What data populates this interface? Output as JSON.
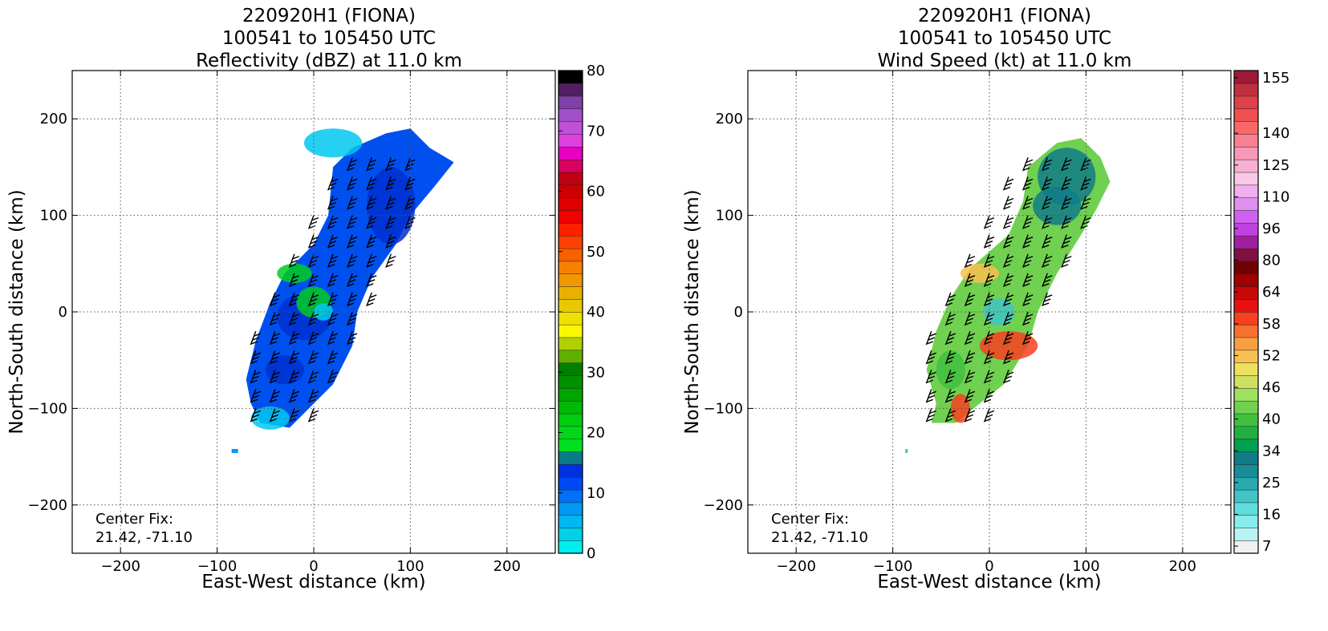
{
  "chart_data": [
    {
      "type": "heatmap",
      "title": [
        "220920H1 (FIONA)",
        "100541 to 105450 UTC",
        "Reflectivity (dBZ) at 11.0 km"
      ],
      "xlabel": "East-West distance (km)",
      "ylabel": "North-South distance (km)",
      "xlim": [
        -250,
        250
      ],
      "ylim": [
        -250,
        250
      ],
      "xticks": [
        "−200",
        "−100",
        "0",
        "100",
        "200"
      ],
      "xtick_values": [
        -200,
        -100,
        0,
        100,
        200
      ],
      "yticks": [
        "200",
        "100",
        "0",
        "−100",
        "−200"
      ],
      "ytick_values": [
        200,
        100,
        0,
        -100,
        -200
      ],
      "grid": true,
      "annotation": [
        "Center Fix:",
        "21.42, -71.10"
      ],
      "colorbar": {
        "min": 0,
        "max": 80,
        "tick_labels": [
          "0",
          "10",
          "20",
          "30",
          "40",
          "50",
          "60",
          "70",
          "80"
        ],
        "tick_values": [
          0,
          10,
          20,
          30,
          40,
          50,
          60,
          70,
          80
        ],
        "colors": [
          "#00eeee",
          "#00d0e8",
          "#00b8f0",
          "#0098f4",
          "#0070f8",
          "#0048f4",
          "#0030e0",
          "#0a7a8a",
          "#00e020",
          "#00d818",
          "#00cc10",
          "#00b808",
          "#00a400",
          "#009000",
          "#008000",
          "#60b000",
          "#b0d000",
          "#f8f800",
          "#f0e000",
          "#e8c800",
          "#e8b000",
          "#f09800",
          "#f88000",
          "#f86000",
          "#ff4000",
          "#ff2000",
          "#f00000",
          "#e00000",
          "#cc0000",
          "#c00010",
          "#d80060",
          "#e800c0",
          "#e040e0",
          "#c050d8",
          "#a050c8",
          "#8040a8",
          "#502060",
          "#000000"
        ]
      }
    },
    {
      "type": "heatmap",
      "title": [
        "220920H1 (FIONA)",
        "100541 to 105450 UTC",
        "Wind Speed (kt) at 11.0 km"
      ],
      "xlabel": "East-West distance (km)",
      "ylabel": "North-South distance (km)",
      "xlim": [
        -250,
        250
      ],
      "ylim": [
        -250,
        250
      ],
      "xticks": [
        "−200",
        "−100",
        "0",
        "100",
        "200"
      ],
      "xtick_values": [
        -200,
        -100,
        0,
        100,
        200
      ],
      "yticks": [
        "200",
        "100",
        "0",
        "−100",
        "−200"
      ],
      "ytick_values": [
        200,
        100,
        0,
        -100,
        -200
      ],
      "grid": true,
      "annotation": [
        "Center Fix:",
        "21.42, -71.10"
      ],
      "colorbar": {
        "tick_labels": [
          "7",
          "16",
          "25",
          "34",
          "40",
          "46",
          "52",
          "58",
          "64",
          "80",
          "96",
          "110",
          "125",
          "140",
          "155"
        ],
        "colors": [
          "#f0f0f0",
          "#b8f4f4",
          "#88ecec",
          "#60dcdc",
          "#40c4c8",
          "#28a8b0",
          "#188c98",
          "#107c88",
          "#00a050",
          "#20b040",
          "#40c040",
          "#70d050",
          "#a0e060",
          "#d0e060",
          "#f0e060",
          "#f8c050",
          "#f8a040",
          "#f87030",
          "#f84020",
          "#e81010",
          "#c80808",
          "#a00000",
          "#700000",
          "#801040",
          "#a020a0",
          "#c040e0",
          "#d060f0",
          "#e090f0",
          "#f0b0f0",
          "#f8c8e8",
          "#f8b0d0",
          "#f898b8",
          "#f88090",
          "#f86868",
          "#f05050",
          "#e04048",
          "#c03040",
          "#a01838"
        ]
      }
    }
  ]
}
